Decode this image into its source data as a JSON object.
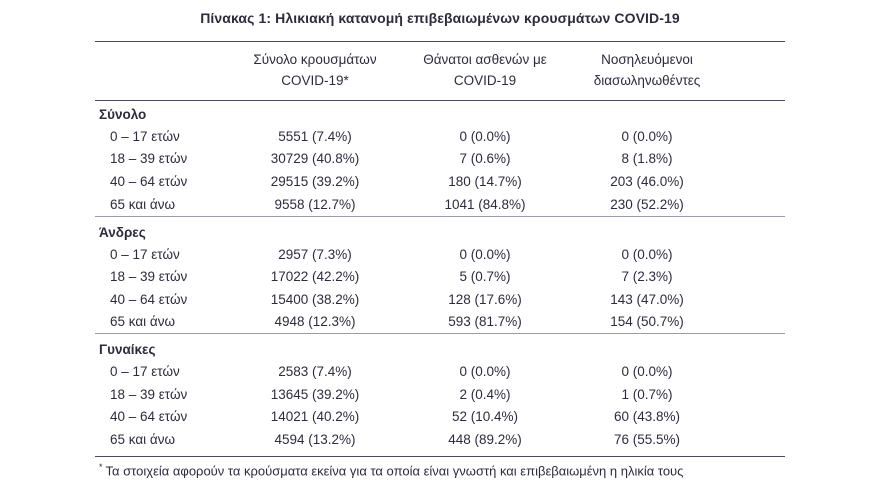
{
  "page": {
    "title": "Πίνακας 1: Ηλικιακή κατανομή επιβεβαιωμένων κρουσμάτων COVID-19",
    "footnote_marker": "*",
    "footnote_text": "Τα στοιχεία αφορούν τα κρούσματα εκείνα για τα οποία είναι γνωστή και επιβεβαιωμένη η ηλικία τους"
  },
  "colors": {
    "text": "#2c2c3e",
    "rule_dark": "#4a4a5e",
    "rule_light": "#9a9aa8",
    "background": "#ffffff"
  },
  "chart_data": {
    "type": "table",
    "title": "Πίνακας 1: Ηλικιακή κατανομή επιβεβαιωμένων κρουσμάτων COVID-19",
    "column_headers": [
      [
        "Σύνολο κρουσμάτων",
        "COVID-19*"
      ],
      [
        "Θάνατοι ασθενών με",
        "COVID-19"
      ],
      [
        "Νοσηλευόμενοι",
        "διασωληνωθέντες"
      ]
    ],
    "sections": [
      {
        "label": "Σύνολο",
        "rows": [
          {
            "age": "0 – 17 ετών",
            "cases": "5551 (7.4%)",
            "deaths": "0 (0.0%)",
            "intubated": "0 (0.0%)"
          },
          {
            "age": "18 – 39 ετών",
            "cases": "30729 (40.8%)",
            "deaths": "7 (0.6%)",
            "intubated": "8 (1.8%)"
          },
          {
            "age": "40 – 64 ετών",
            "cases": "29515 (39.2%)",
            "deaths": "180 (14.7%)",
            "intubated": "203 (46.0%)"
          },
          {
            "age": "65 και άνω",
            "cases": "9558 (12.7%)",
            "deaths": "1041 (84.8%)",
            "intubated": "230 (52.2%)"
          }
        ]
      },
      {
        "label": "Άνδρες",
        "rows": [
          {
            "age": "0 – 17 ετών",
            "cases": "2957 (7.3%)",
            "deaths": "0 (0.0%)",
            "intubated": "0 (0.0%)"
          },
          {
            "age": "18 – 39 ετών",
            "cases": "17022 (42.2%)",
            "deaths": "5 (0.7%)",
            "intubated": "7 (2.3%)"
          },
          {
            "age": "40 – 64 ετών",
            "cases": "15400 (38.2%)",
            "deaths": "128 (17.6%)",
            "intubated": "143 (47.0%)"
          },
          {
            "age": "65 και άνω",
            "cases": "4948 (12.3%)",
            "deaths": "593 (81.7%)",
            "intubated": "154 (50.7%)"
          }
        ]
      },
      {
        "label": "Γυναίκες",
        "rows": [
          {
            "age": "0 – 17 ετών",
            "cases": "2583 (7.4%)",
            "deaths": "0 (0.0%)",
            "intubated": "0 (0.0%)"
          },
          {
            "age": "18 – 39 ετών",
            "cases": "13645 (39.2%)",
            "deaths": "2 (0.4%)",
            "intubated": "1 (0.7%)"
          },
          {
            "age": "40 – 64 ετών",
            "cases": "14021 (40.2%)",
            "deaths": "52 (10.4%)",
            "intubated": "60 (43.8%)"
          },
          {
            "age": "65 και άνω",
            "cases": "4594 (13.2%)",
            "deaths": "448 (89.2%)",
            "intubated": "76 (55.5%)"
          }
        ]
      }
    ]
  }
}
